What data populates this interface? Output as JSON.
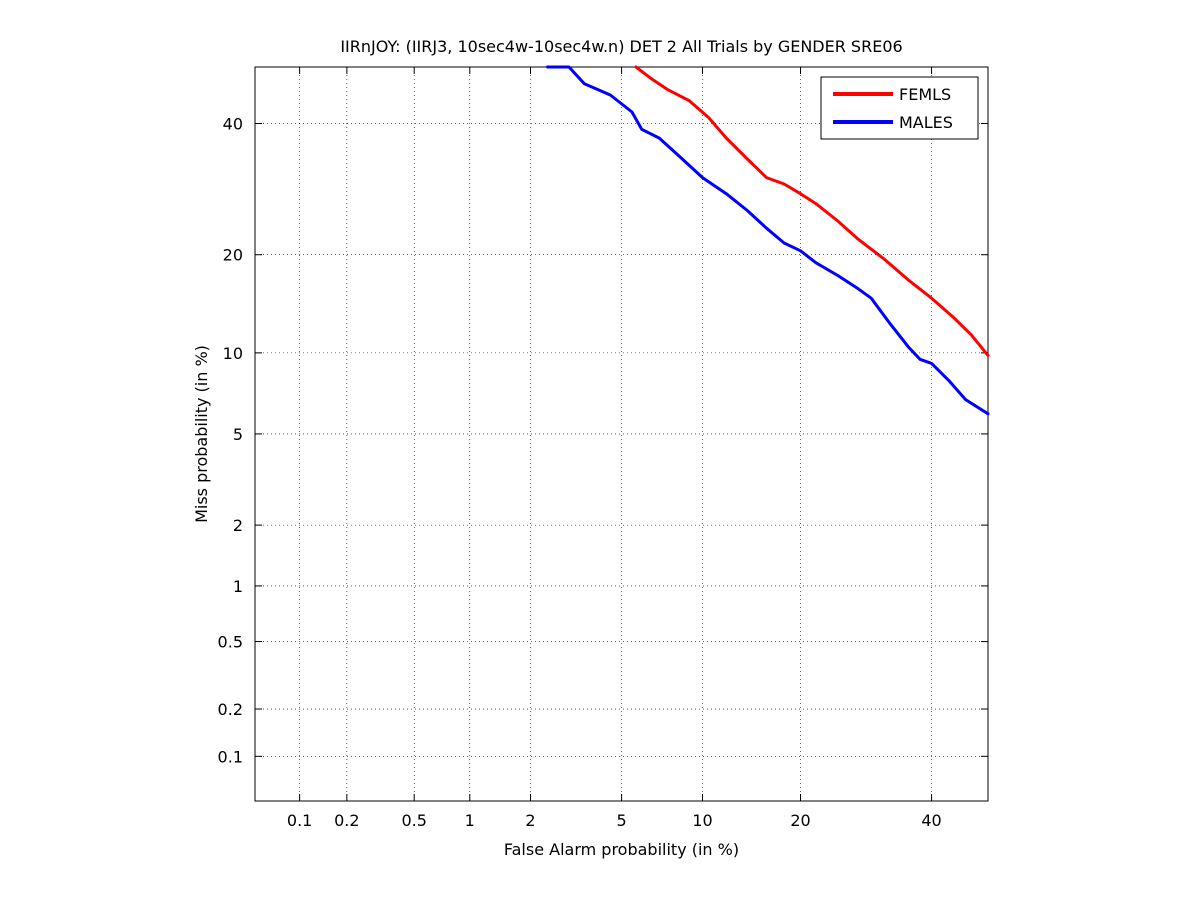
{
  "chart_data": {
    "type": "line",
    "title": "IIRnJOY: (IIRJ3, 10sec4w-10sec4w.n) DET 2 All Trials by GENDER SRE06",
    "xlabel": "False Alarm probability (in %)",
    "ylabel": "Miss probability (in %)",
    "scale": "normal-deviate (probit)",
    "xlim": [
      0.05,
      50
    ],
    "ylim": [
      0.05,
      50
    ],
    "grid": true,
    "legend_position": "top-right",
    "x_ticks": [
      "0.1",
      "0.2",
      "0.5",
      "1",
      "2",
      "5",
      "10",
      "20",
      "40"
    ],
    "y_ticks": [
      "0.1",
      "0.2",
      "0.5",
      "1",
      "2",
      "5",
      "10",
      "20",
      "40"
    ],
    "series": [
      {
        "name": "FEMLS",
        "color": "#ff0000",
        "points": [
          [
            5.7,
            50
          ],
          [
            6.5,
            48
          ],
          [
            7.5,
            46
          ],
          [
            9,
            44
          ],
          [
            10.5,
            41
          ],
          [
            12,
            37.5
          ],
          [
            14,
            34
          ],
          [
            16,
            31
          ],
          [
            18,
            30
          ],
          [
            20,
            28.5
          ],
          [
            22,
            27
          ],
          [
            25,
            24.5
          ],
          [
            28,
            22
          ],
          [
            32,
            19.5
          ],
          [
            36,
            17
          ],
          [
            40,
            15
          ],
          [
            44,
            13
          ],
          [
            47,
            11.5
          ],
          [
            50,
            9.8
          ]
        ]
      },
      {
        "name": "MALES",
        "color": "#0000ff",
        "points": [
          [
            2.4,
            50
          ],
          [
            3,
            50
          ],
          [
            3.5,
            47
          ],
          [
            4.5,
            45
          ],
          [
            5.5,
            42
          ],
          [
            6,
            39
          ],
          [
            7,
            37.5
          ],
          [
            8.5,
            34
          ],
          [
            10,
            31
          ],
          [
            12,
            28.5
          ],
          [
            14,
            26
          ],
          [
            16,
            23.5
          ],
          [
            18,
            21.5
          ],
          [
            20,
            20.5
          ],
          [
            22,
            19
          ],
          [
            25,
            17.5
          ],
          [
            28,
            16
          ],
          [
            30,
            15
          ],
          [
            33,
            12.5
          ],
          [
            36,
            10.5
          ],
          [
            38,
            9.5
          ],
          [
            40,
            9.2
          ],
          [
            43,
            8
          ],
          [
            46,
            6.8
          ],
          [
            50,
            6.0
          ]
        ]
      }
    ]
  }
}
